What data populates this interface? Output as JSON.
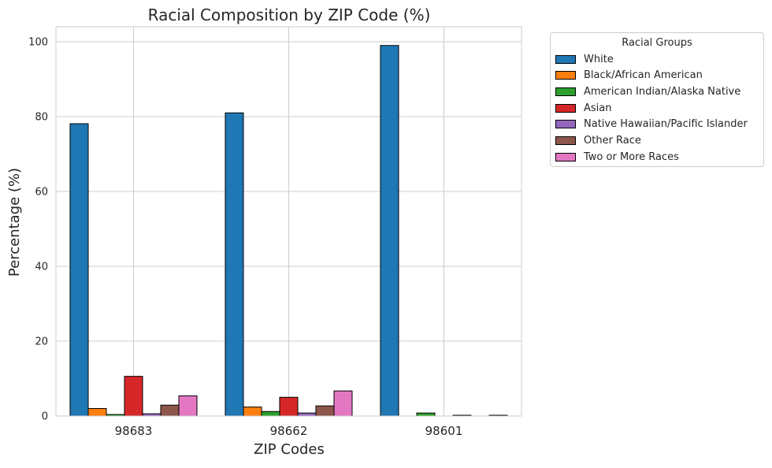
{
  "chart_data": {
    "type": "bar",
    "title": "Racial Composition by ZIP Code (%)",
    "xlabel": "ZIP Codes",
    "ylabel": "Percentage (%)",
    "ylim": [
      0,
      104
    ],
    "yticks": [
      0,
      20,
      40,
      60,
      80,
      100
    ],
    "grid": true,
    "legend_title": "Racial Groups",
    "legend_position": "outside-right",
    "categories": [
      "98683",
      "98662",
      "98601"
    ],
    "series": [
      {
        "name": "White",
        "color": "#1f77b4",
        "values": [
          78.1,
          81.0,
          99.0
        ]
      },
      {
        "name": "Black/African American",
        "color": "#ff7f0e",
        "values": [
          2.0,
          2.4,
          0.0
        ]
      },
      {
        "name": "American Indian/Alaska Native",
        "color": "#2ca02c",
        "values": [
          0.4,
          1.2,
          0.8
        ]
      },
      {
        "name": "Asian",
        "color": "#d62728",
        "values": [
          10.6,
          5.0,
          0.0
        ]
      },
      {
        "name": "Native Hawaiian/Pacific Islander",
        "color": "#9467bd",
        "values": [
          0.6,
          0.8,
          0.2
        ]
      },
      {
        "name": "Other Race",
        "color": "#8c564b",
        "values": [
          2.9,
          2.7,
          0.0
        ]
      },
      {
        "name": "Two or More Races",
        "color": "#e377c2",
        "values": [
          5.4,
          6.7,
          0.2
        ]
      }
    ]
  }
}
